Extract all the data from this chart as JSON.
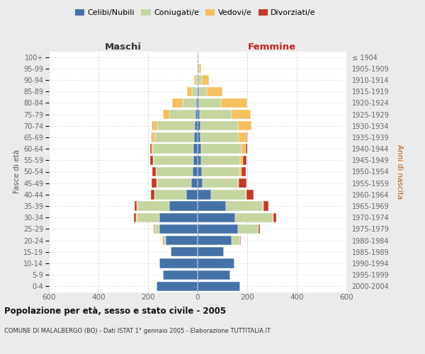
{
  "age_groups_bottom_to_top": [
    "0-4",
    "5-9",
    "10-14",
    "15-19",
    "20-24",
    "25-29",
    "30-34",
    "35-39",
    "40-44",
    "45-49",
    "50-54",
    "55-59",
    "60-64",
    "65-69",
    "70-74",
    "75-79",
    "80-84",
    "85-89",
    "90-94",
    "95-99",
    "100+"
  ],
  "birth_years_bottom_to_top": [
    "2000-2004",
    "1995-1999",
    "1990-1994",
    "1985-1989",
    "1980-1984",
    "1975-1979",
    "1970-1974",
    "1965-1969",
    "1960-1964",
    "1955-1959",
    "1950-1954",
    "1945-1949",
    "1940-1944",
    "1935-1939",
    "1930-1934",
    "1925-1929",
    "1920-1924",
    "1915-1919",
    "1910-1914",
    "1905-1909",
    "≤ 1904"
  ],
  "male_celibi": [
    165,
    140,
    155,
    110,
    130,
    155,
    155,
    115,
    45,
    25,
    20,
    18,
    17,
    14,
    12,
    8,
    5,
    2,
    1,
    0,
    0
  ],
  "male_coniugati": [
    0,
    0,
    0,
    0,
    8,
    18,
    92,
    128,
    128,
    138,
    148,
    158,
    163,
    158,
    150,
    105,
    55,
    20,
    5,
    2,
    0
  ],
  "male_vedovi": [
    0,
    0,
    0,
    0,
    0,
    2,
    2,
    2,
    2,
    2,
    2,
    4,
    7,
    10,
    18,
    28,
    42,
    20,
    8,
    2,
    0
  ],
  "male_divorziati": [
    0,
    0,
    0,
    0,
    2,
    2,
    8,
    8,
    14,
    20,
    12,
    12,
    5,
    4,
    2,
    0,
    0,
    0,
    0,
    0,
    0
  ],
  "female_nubili": [
    172,
    130,
    148,
    105,
    138,
    162,
    152,
    115,
    55,
    20,
    17,
    14,
    14,
    12,
    10,
    8,
    5,
    5,
    2,
    0,
    0
  ],
  "female_coniugate": [
    0,
    0,
    0,
    0,
    33,
    83,
    152,
    148,
    138,
    142,
    152,
    158,
    163,
    153,
    153,
    128,
    88,
    33,
    14,
    5,
    0
  ],
  "female_vedove": [
    0,
    0,
    0,
    0,
    0,
    2,
    3,
    4,
    4,
    4,
    7,
    10,
    18,
    33,
    53,
    78,
    108,
    63,
    30,
    8,
    2
  ],
  "female_divorziate": [
    0,
    0,
    0,
    0,
    2,
    4,
    10,
    20,
    28,
    30,
    18,
    14,
    5,
    2,
    2,
    0,
    0,
    0,
    0,
    0,
    0
  ],
  "colors": {
    "celibi": "#4472a8",
    "coniugati": "#c5d5a0",
    "vedovi": "#f5c060",
    "divorziati": "#c0392b"
  },
  "xlim": 600,
  "title": "Popolazione per età, sesso e stato civile - 2005",
  "subtitle": "COMUNE DI MALALBERGO (BO) - Dati ISTAT 1° gennaio 2005 - Elaborazione TUTTITALIA.IT",
  "xlabel_left": "Maschi",
  "xlabel_right": "Femmine",
  "ylabel_left": "Fasce di età",
  "ylabel_right": "Anni di nascita",
  "bg_color": "#ebebeb",
  "plot_bg_color": "#ffffff"
}
